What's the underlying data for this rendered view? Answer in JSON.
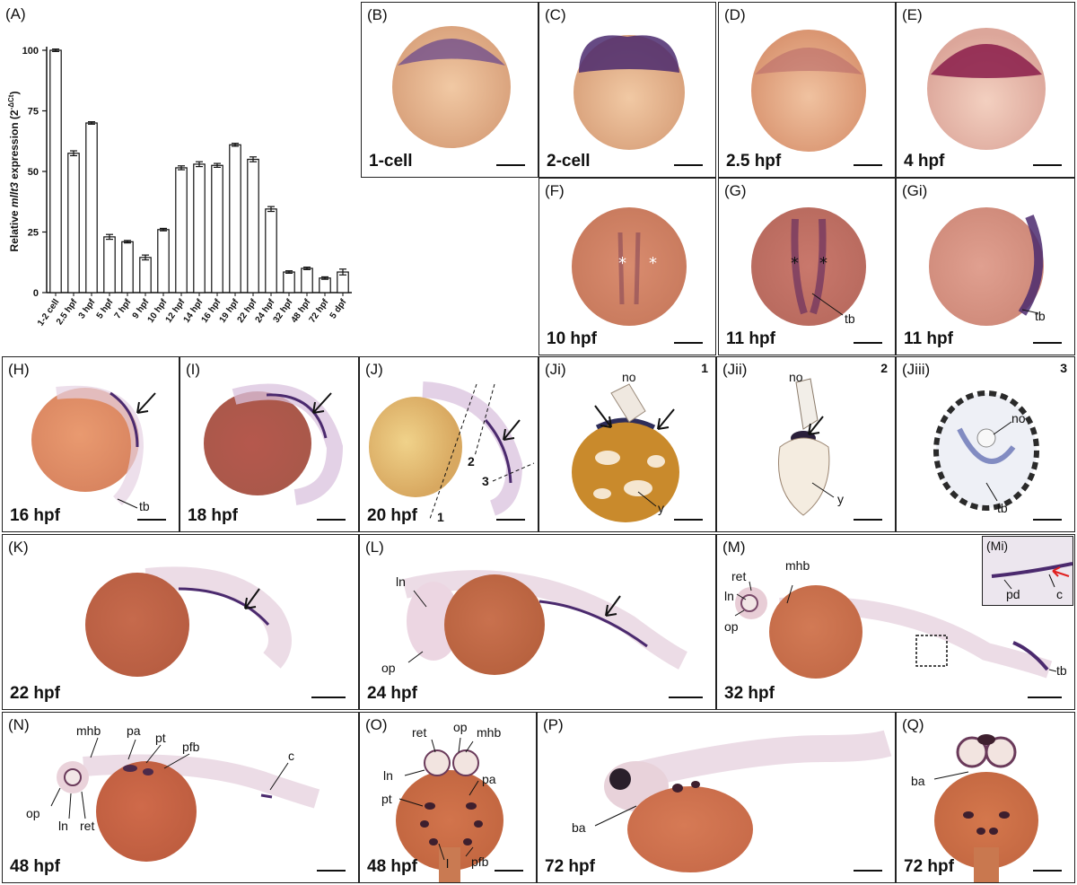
{
  "panels": {
    "A": {
      "label": "(A)"
    },
    "B": {
      "label": "(B)",
      "stage": "1-cell"
    },
    "C": {
      "label": "(C)",
      "stage": "2-cell"
    },
    "D": {
      "label": "(D)",
      "stage": "2.5 hpf"
    },
    "E": {
      "label": "(E)",
      "stage": "4 hpf"
    },
    "F": {
      "label": "(F)",
      "stage": "10 hpf"
    },
    "G": {
      "label": "(G)",
      "stage": "11 hpf",
      "tb": "tb"
    },
    "Gi": {
      "label": "(Gi)",
      "stage": "11 hpf",
      "tb": "tb"
    },
    "H": {
      "label": "(H)",
      "stage": "16 hpf",
      "tb": "tb"
    },
    "I": {
      "label": "(I)",
      "stage": "18 hpf"
    },
    "J": {
      "label": "(J)",
      "stage": "20 hpf",
      "cut1": "1",
      "cut2": "2",
      "cut3": "3"
    },
    "Ji": {
      "label": "(Ji)",
      "num": "1",
      "no": "no",
      "y": "y"
    },
    "Jii": {
      "label": "(Jii)",
      "num": "2",
      "no": "no",
      "y": "y"
    },
    "Jiii": {
      "label": "(Jiii)",
      "num": "3",
      "no": "no",
      "tb": "tb"
    },
    "K": {
      "label": "(K)",
      "stage": "22 hpf"
    },
    "L": {
      "label": "(L)",
      "stage": "24 hpf",
      "ln": "ln",
      "op": "op"
    },
    "M": {
      "label": "(M)",
      "stage": "32 hpf",
      "ret": "ret",
      "mhb": "mhb",
      "ln": "ln",
      "op": "op",
      "tb": "tb"
    },
    "Mi": {
      "label": "(Mi)",
      "pd": "pd",
      "c": "c"
    },
    "N": {
      "label": "(N)",
      "stage": "48 hpf",
      "mhb": "mhb",
      "pa": "pa",
      "pt": "pt",
      "pfb": "pfb",
      "c": "c",
      "op": "op",
      "ln": "ln",
      "ret": "ret"
    },
    "O": {
      "label": "(O)",
      "stage": "48 hpf",
      "ret": "ret",
      "op": "op",
      "mhb": "mhb",
      "ln": "ln",
      "pa": "pa",
      "pt": "pt",
      "pfb": "pfb",
      "l": "l"
    },
    "P": {
      "label": "(P)",
      "stage": "72 hpf",
      "ba": "ba"
    },
    "Q": {
      "label": "(Q)",
      "stage": "72 hpf",
      "ba": "ba"
    }
  },
  "colors": {
    "embryo": "#d98c5f",
    "embryo_light": "#f0c8a8",
    "stain": "#4b2a6e",
    "yolk_dark": "#b7601a",
    "arrow_red": "#e02020"
  },
  "chart_data": {
    "type": "bar",
    "ylabel_prefix": "Relative ",
    "ylabel_gene": "mllt3",
    "ylabel_suffix": " expression (2",
    "ylabel_exp": "-ΔCt",
    "ylabel_close": ")",
    "ylim": [
      0,
      100
    ],
    "yticks": [
      0,
      25,
      50,
      75,
      100
    ],
    "categories": [
      "1-2 cell",
      "2.5 hpf",
      "3 hpf",
      "5 hpf",
      "7 hpf",
      "9 hpf",
      "10 hpf",
      "12 hpf",
      "14 hpf",
      "16 hpf",
      "19 hpf",
      "22 hpf",
      "24 hpf",
      "32 hpf",
      "48 hpf",
      "72 hpf",
      "5 dpf"
    ],
    "values": [
      100,
      57.5,
      70,
      23,
      21,
      14.5,
      26,
      51.5,
      53,
      52.5,
      61,
      55,
      34.5,
      8.5,
      10,
      6,
      8.5
    ],
    "errors": [
      0.5,
      1,
      0.5,
      1,
      0.5,
      1,
      0.5,
      0.8,
      1,
      0.8,
      0.6,
      1,
      1,
      0.5,
      0.5,
      0.5,
      1.2
    ]
  }
}
